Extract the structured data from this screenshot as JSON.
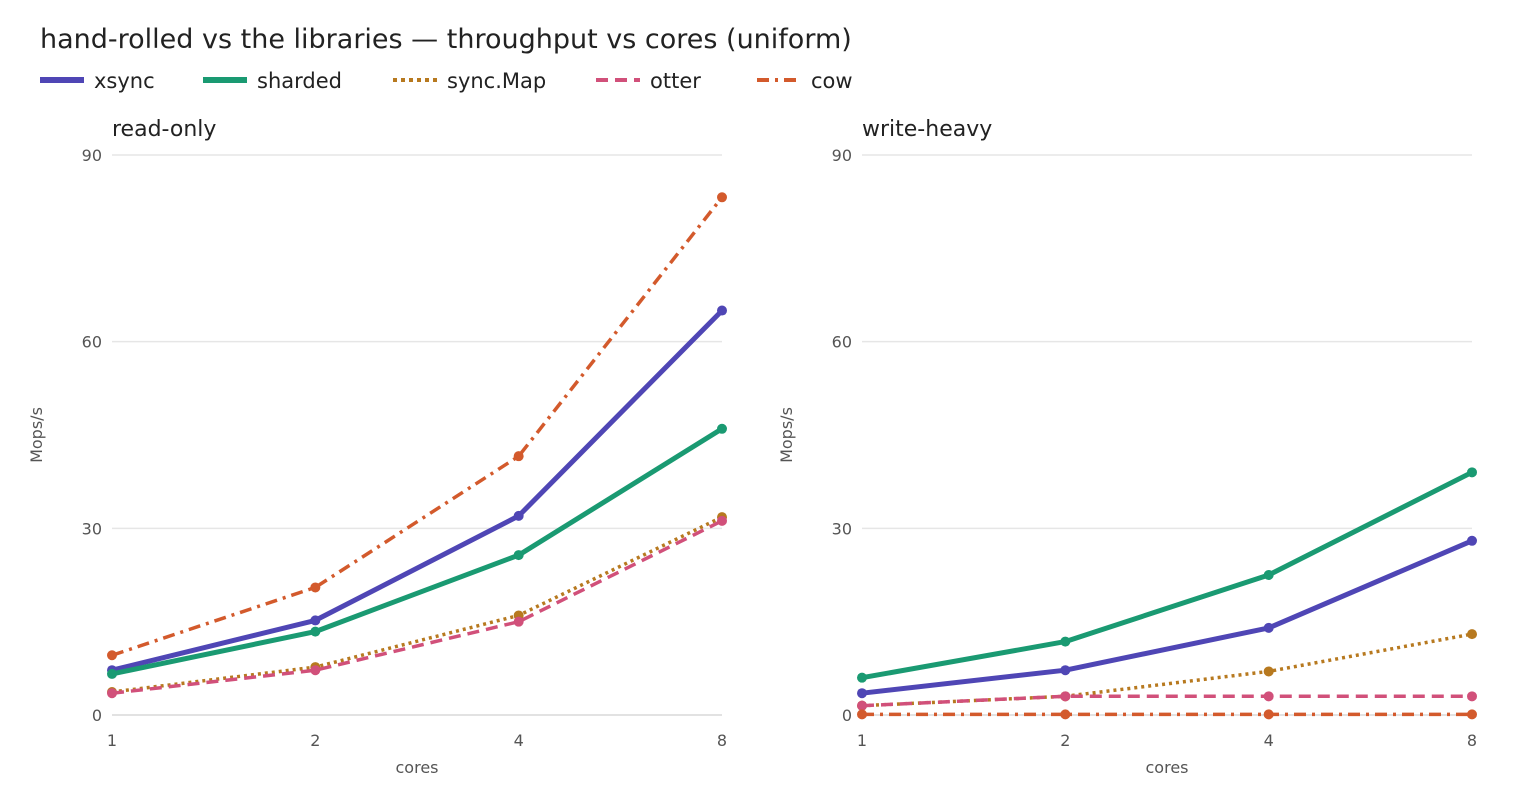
{
  "title": "hand-rolled vs the libraries — throughput vs cores (uniform)",
  "chart_data": [
    {
      "type": "line",
      "title": "read-only",
      "xlabel": "cores",
      "ylabel": "Mops/s",
      "x": [
        1,
        2,
        4,
        8
      ],
      "xticks": [
        "1",
        "2",
        "4",
        "8"
      ],
      "ylim": [
        0,
        90
      ],
      "yticks": [
        0,
        30,
        60,
        90
      ],
      "grid": "horizontal",
      "series": [
        {
          "name": "xsync",
          "values": [
            7.2,
            15.2,
            32.0,
            65.0
          ]
        },
        {
          "name": "sharded",
          "values": [
            6.6,
            13.4,
            25.7,
            46.0
          ]
        },
        {
          "name": "sync.Map",
          "values": [
            3.7,
            7.7,
            16.0,
            31.8
          ]
        },
        {
          "name": "otter",
          "values": [
            3.5,
            7.2,
            15.0,
            31.2
          ]
        },
        {
          "name": "cow",
          "values": [
            9.6,
            20.5,
            41.6,
            83.2
          ]
        }
      ]
    },
    {
      "type": "line",
      "title": "write-heavy",
      "xlabel": "cores",
      "ylabel": "Mops/s",
      "x": [
        1,
        2,
        4,
        8
      ],
      "xticks": [
        "1",
        "2",
        "4",
        "8"
      ],
      "ylim": [
        0,
        90
      ],
      "yticks": [
        0,
        30,
        60,
        90
      ],
      "grid": "horizontal",
      "series": [
        {
          "name": "xsync",
          "values": [
            3.5,
            7.2,
            14.0,
            28.0
          ]
        },
        {
          "name": "sharded",
          "values": [
            6.0,
            11.8,
            22.5,
            39.0
          ]
        },
        {
          "name": "sync.Map",
          "values": [
            1.5,
            3.0,
            7.0,
            13.0
          ]
        },
        {
          "name": "otter",
          "values": [
            1.5,
            3.0,
            3.0,
            3.0
          ]
        },
        {
          "name": "cow",
          "values": [
            0.1,
            0.1,
            0.1,
            0.1
          ]
        }
      ]
    }
  ],
  "legend": {
    "placement": "top-left",
    "items": [
      {
        "name": "xsync",
        "color": "#4f46b5",
        "dash": "solid"
      },
      {
        "name": "sharded",
        "color": "#1a9a72",
        "dash": "solid"
      },
      {
        "name": "sync.Map",
        "color": "#b7791f",
        "dash": "dotted"
      },
      {
        "name": "otter",
        "color": "#d1507a",
        "dash": "dashed"
      },
      {
        "name": "cow",
        "color": "#d35a2c",
        "dash": "dashdot"
      }
    ]
  }
}
